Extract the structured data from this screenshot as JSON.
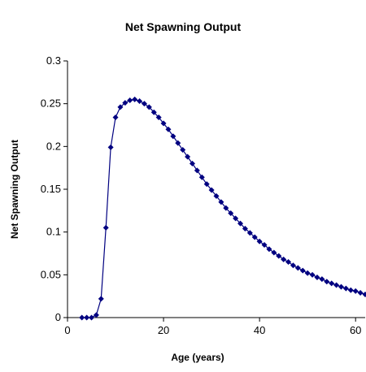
{
  "chart_data": {
    "type": "line",
    "title": "Net Spawning Output",
    "x_label": "Age (years)",
    "y_label": "Net Spawning Output",
    "x": [
      3,
      4,
      5,
      6,
      7,
      8,
      9,
      10,
      11,
      12,
      13,
      14,
      15,
      16,
      17,
      18,
      19,
      20,
      21,
      22,
      23,
      24,
      25,
      26,
      27,
      28,
      29,
      30,
      31,
      32,
      33,
      34,
      35,
      36,
      37,
      38,
      39,
      40,
      41,
      42,
      43,
      44,
      45,
      46,
      47,
      48,
      49,
      50,
      51,
      52,
      53,
      54,
      55,
      56,
      57,
      58,
      59,
      60,
      61,
      62
    ],
    "series": [
      {
        "name": "Net Spawning Output",
        "color": "#000080",
        "values": [
          0,
          0,
          0,
          0.003,
          0.022,
          0.105,
          0.199,
          0.234,
          0.246,
          0.251,
          0.254,
          0.255,
          0.253,
          0.25,
          0.246,
          0.24,
          0.234,
          0.227,
          0.22,
          0.212,
          0.204,
          0.196,
          0.188,
          0.18,
          0.172,
          0.164,
          0.156,
          0.149,
          0.142,
          0.135,
          0.128,
          0.122,
          0.116,
          0.11,
          0.104,
          0.099,
          0.094,
          0.089,
          0.085,
          0.08,
          0.076,
          0.072,
          0.068,
          0.065,
          0.061,
          0.058,
          0.055,
          0.052,
          0.05,
          0.047,
          0.045,
          0.042,
          0.04,
          0.038,
          0.036,
          0.034,
          0.032,
          0.031,
          0.029,
          0.027
        ]
      }
    ],
    "xlim": [
      0,
      62
    ],
    "ylim": [
      0,
      0.3
    ],
    "xticks": [
      0,
      20,
      40,
      60
    ],
    "yticks": [
      0,
      0.05,
      0.1,
      0.15,
      0.2,
      0.25,
      0.3
    ],
    "grid": false,
    "legend": false
  }
}
